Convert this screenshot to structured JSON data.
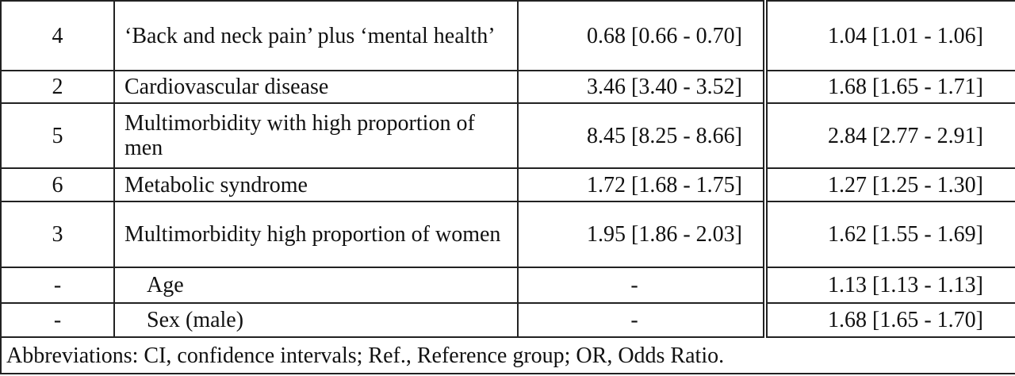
{
  "table": {
    "rows": [
      [
        "4",
        "‘Back and neck pain’ plus ‘mental health’",
        "0.68 [0.66 - 0.70]",
        "1.04 [1.01 - 1.06]"
      ],
      [
        "2",
        "Cardiovascular disease",
        "3.46 [3.40 - 3.52]",
        "1.68 [1.65 - 1.71]"
      ],
      [
        "5",
        "Multimorbidity with high proportion of men",
        "8.45 [8.25 - 8.66]",
        "2.84 [2.77 - 2.91]"
      ],
      [
        "6",
        "Metabolic syndrome",
        "1.72 [1.68 - 1.75]",
        "1.27 [1.25 - 1.30]"
      ],
      [
        "3",
        "Multimorbidity high proportion of women",
        "1.95 [1.86 - 2.03]",
        "1.62 [1.55 - 1.69]"
      ],
      [
        "-",
        "Age",
        "-",
        "1.13 [1.13 - 1.13]"
      ],
      [
        "-",
        "Sex (male)",
        "-",
        "1.68 [1.65 - 1.70]"
      ]
    ],
    "footnote": "Abbreviations: CI, confidence intervals; Ref., Reference group; OR, Odds Ratio."
  }
}
